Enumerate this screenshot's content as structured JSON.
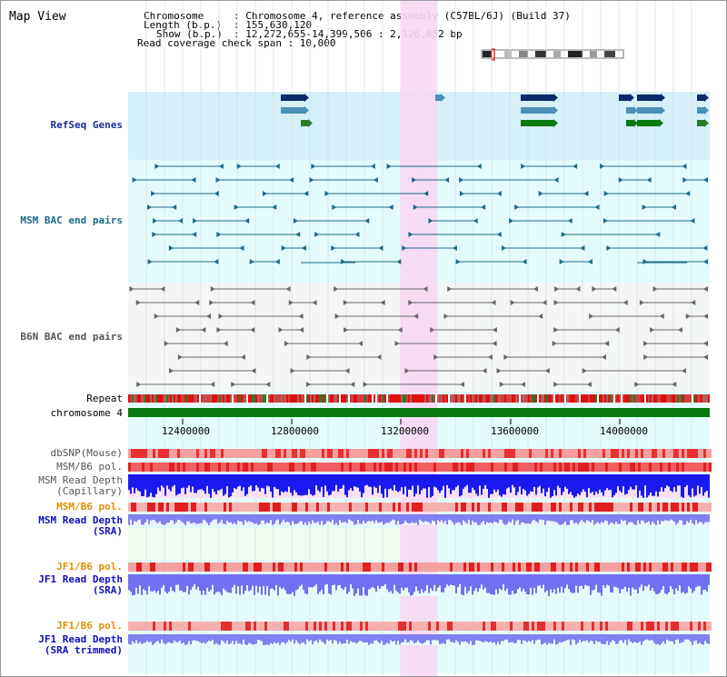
{
  "window": {
    "title": "Map View"
  },
  "header": {
    "chromosome_label": "Chromosome",
    "chromosome_value": ": Chromosome 4, reference assembly (C57BL/6J) (Build 37)",
    "length_label": "Length (b.p.)",
    "length_value": ": 155,630,120",
    "show_label": "Show (b.p.)",
    "show_value": ": 12,272,655-14,399,506 : 2,126,852 bp",
    "coverage": "Read coverage check span : 10,000"
  },
  "tracks": {
    "refseq": "RefSeq Genes",
    "msm_bac": "MSM BAC end pairs",
    "b6n_bac": "B6N BAC end pairs",
    "repeat": "Repeat",
    "chromosome": "chromosome 4",
    "dbsnp": "dbSNP(Mouse)",
    "msm_pol": "MSM/B6 pol.",
    "msm_depth_cap_1": "MSM Read Depth",
    "msm_depth_cap_2": "(Capillary)",
    "msm_pol_sra": "MSM/B6 pol.",
    "msm_depth_sra_1": "MSM Read Depth",
    "msm_depth_sra_2": "(SRA)",
    "jf1_pol": "JF1/B6 pol.",
    "jf1_depth_1": "JF1 Read Depth",
    "jf1_depth_2": "(SRA)",
    "jf1_pol_trim": "JF1/B6 pol.",
    "jf1_trim_1": "JF1 Read Depth",
    "jf1_trim_2": "(SRA trimmed)"
  },
  "axis_ticks": [
    "12400000",
    "12800000",
    "13200000",
    "13600000",
    "14000000"
  ],
  "colors": {
    "refseq_label": "#1a2aa0",
    "msm_label": "#1a6a8a",
    "b6n_label": "#555555",
    "pol_label": "#e09000",
    "depth_label": "#1010c0",
    "highlight": "#f7d8f3",
    "grid_bg": "#e4fbfb"
  }
}
